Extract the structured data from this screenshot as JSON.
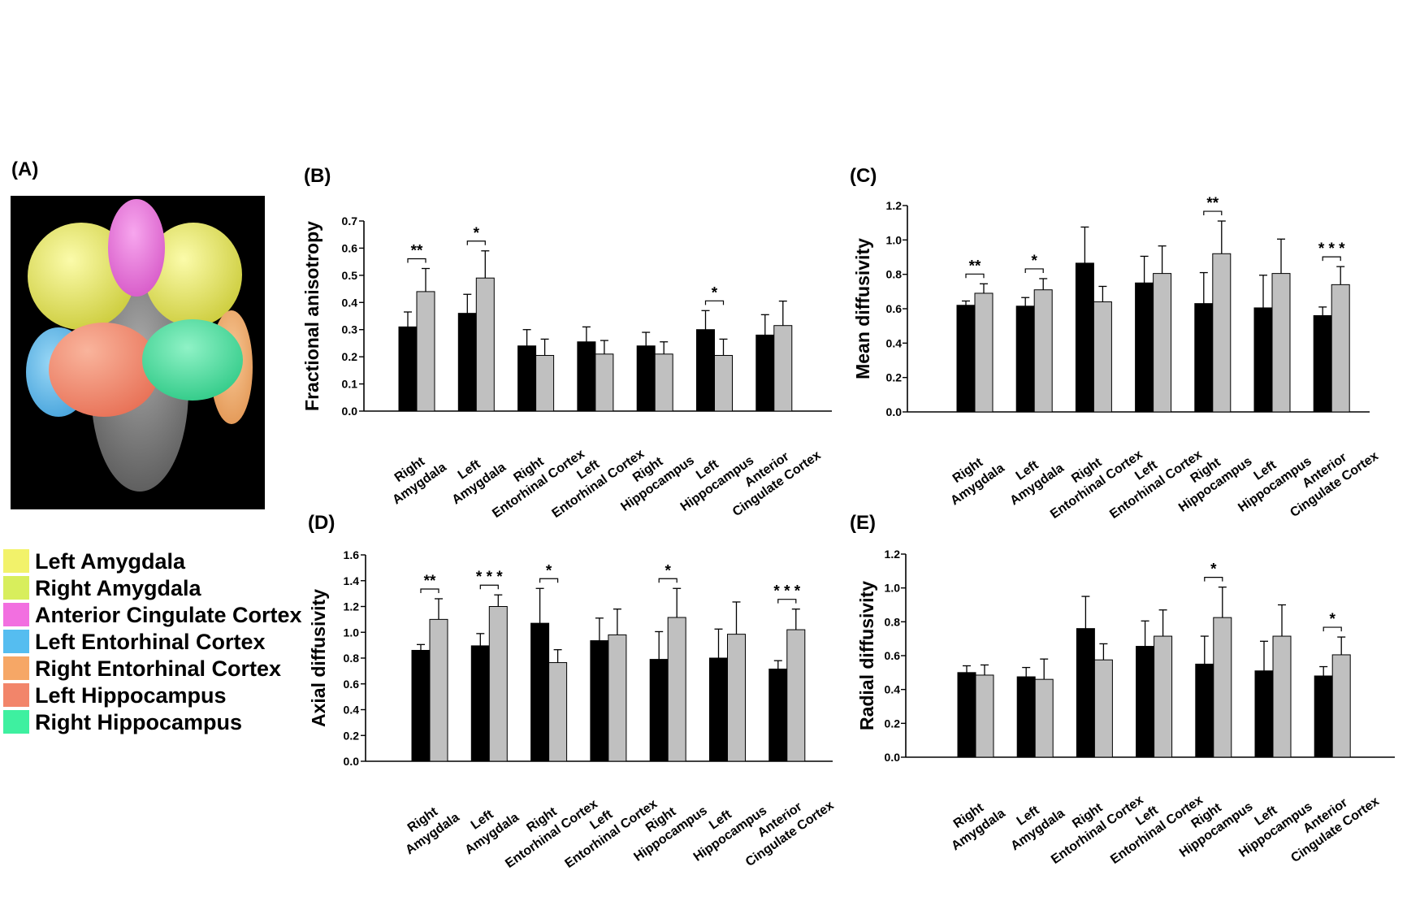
{
  "figure": {
    "panels": [
      {
        "label": "(A)"
      },
      {
        "label": "(B)"
      },
      {
        "label": "(C)"
      },
      {
        "label": "(D)"
      },
      {
        "label": "(E)"
      }
    ],
    "legend": [
      {
        "label": "Left Amygdala",
        "color": "#f2f26a"
      },
      {
        "label": "Right Amygdala",
        "color": "#d8ee5c"
      },
      {
        "label": "Anterior Cingulate Cortex",
        "color": "#f26fe0"
      },
      {
        "label": "Left Entorhinal Cortex",
        "color": "#55bdf0"
      },
      {
        "label": "Right Entorhinal Cortex",
        "color": "#f6a766"
      },
      {
        "label": "Left Hippocampus",
        "color": "#f2856a"
      },
      {
        "label": "Right Hippocampus",
        "color": "#3ef0a0"
      }
    ],
    "colors": {
      "group1": "#000000",
      "group2": "#c0c0c0",
      "axis": "#000000",
      "background": "#ffffff"
    }
  },
  "chart_data": [
    {
      "panel": "(B)",
      "type": "bar",
      "ylabel": "Fractional anisotropy",
      "ylim": [
        0,
        0.7
      ],
      "yticks": [
        "0.0",
        "0.1",
        "0.2",
        "0.3",
        "0.4",
        "0.5",
        "0.6",
        "0.7"
      ],
      "categories": [
        [
          "Right",
          "Amygdala"
        ],
        [
          "Left",
          "Amygdala"
        ],
        [
          "Right",
          "Entorhinal Cortex"
        ],
        [
          "Left",
          "Entorhinal Cortex"
        ],
        [
          "Right",
          "Hippocampus"
        ],
        [
          "Left",
          "Hippocampus"
        ],
        [
          "Anterior",
          "Cingulate Cortex"
        ]
      ],
      "series": [
        {
          "name": "group 1 (black)",
          "values": [
            0.31,
            0.36,
            0.24,
            0.255,
            0.24,
            0.3,
            0.28
          ],
          "errors": [
            0.055,
            0.07,
            0.06,
            0.055,
            0.05,
            0.07,
            0.075
          ]
        },
        {
          "name": "group 2 (gray)",
          "values": [
            0.44,
            0.49,
            0.205,
            0.21,
            0.21,
            0.205,
            0.315
          ],
          "errors": [
            0.085,
            0.1,
            0.06,
            0.05,
            0.045,
            0.06,
            0.09
          ]
        }
      ],
      "significance": [
        {
          "category": 0,
          "label": "**"
        },
        {
          "category": 1,
          "label": "*"
        },
        {
          "category": 5,
          "label": "*"
        }
      ]
    },
    {
      "panel": "(C)",
      "type": "bar",
      "ylabel": "Mean diffusivity",
      "ylim": [
        0,
        1.2
      ],
      "yticks": [
        "0.0",
        "0.2",
        "0.4",
        "0.6",
        "0.8",
        "1.0",
        "1.2"
      ],
      "categories": [
        [
          "Right",
          "Amygdala"
        ],
        [
          "Left",
          "Amygdala"
        ],
        [
          "Right",
          "Entorhinal Cortex"
        ],
        [
          "Left",
          "Entorhinal Cortex"
        ],
        [
          "Right",
          "Hippocampus"
        ],
        [
          "Left",
          "Hippocampus"
        ],
        [
          "Anterior",
          "Cingulate Cortex"
        ]
      ],
      "series": [
        {
          "name": "group 1 (black)",
          "values": [
            0.62,
            0.615,
            0.865,
            0.75,
            0.63,
            0.605,
            0.56
          ],
          "errors": [
            0.025,
            0.05,
            0.21,
            0.155,
            0.18,
            0.19,
            0.05
          ]
        },
        {
          "name": "group 2 (gray)",
          "values": [
            0.69,
            0.71,
            0.64,
            0.805,
            0.92,
            0.805,
            0.74
          ],
          "errors": [
            0.055,
            0.065,
            0.09,
            0.16,
            0.19,
            0.2,
            0.105
          ]
        }
      ],
      "significance": [
        {
          "category": 0,
          "label": "**"
        },
        {
          "category": 1,
          "label": "*"
        },
        {
          "category": 4,
          "label": "**"
        },
        {
          "category": 6,
          "label": "* * *"
        }
      ]
    },
    {
      "panel": "(D)",
      "type": "bar",
      "ylabel": "Axial diffusivity",
      "ylim": [
        0,
        1.6
      ],
      "yticks": [
        "0.0",
        "0.2",
        "0.4",
        "0.6",
        "0.8",
        "1.0",
        "1.2",
        "1.4",
        "1.6"
      ],
      "categories": [
        [
          "Right",
          "Amygdala"
        ],
        [
          "Left",
          "Amygdala"
        ],
        [
          "Right",
          "Entorhinal Cortex"
        ],
        [
          "Left",
          "Entorhinal Cortex"
        ],
        [
          "Right",
          "Hippocampus"
        ],
        [
          "Left",
          "Hippocampus"
        ],
        [
          "Anterior",
          "Cingulate Cortex"
        ]
      ],
      "series": [
        {
          "name": "group 1 (black)",
          "values": [
            0.86,
            0.895,
            1.07,
            0.935,
            0.79,
            0.8,
            0.715
          ],
          "errors": [
            0.045,
            0.095,
            0.27,
            0.175,
            0.215,
            0.225,
            0.065
          ]
        },
        {
          "name": "group 2 (gray)",
          "values": [
            1.1,
            1.2,
            0.765,
            0.98,
            1.115,
            0.985,
            1.02
          ],
          "errors": [
            0.16,
            0.09,
            0.1,
            0.2,
            0.225,
            0.25,
            0.16
          ]
        }
      ],
      "significance": [
        {
          "category": 0,
          "label": "**"
        },
        {
          "category": 1,
          "label": "* * *"
        },
        {
          "category": 2,
          "label": "*"
        },
        {
          "category": 4,
          "label": "*"
        },
        {
          "category": 6,
          "label": "* * *"
        }
      ]
    },
    {
      "panel": "(E)",
      "type": "bar",
      "ylabel": "Radial diffusivity",
      "ylim": [
        0,
        1.2
      ],
      "yticks": [
        "0.0",
        "0.2",
        "0.4",
        "0.6",
        "0.8",
        "1.0",
        "1.2"
      ],
      "categories": [
        [
          "Right",
          "Amygdala"
        ],
        [
          "Left",
          "Amygdala"
        ],
        [
          "Right",
          "Entorhinal Cortex"
        ],
        [
          "Left",
          "Entorhinal Cortex"
        ],
        [
          "Right",
          "Hippocampus"
        ],
        [
          "Left",
          "Hippocampus"
        ],
        [
          "Anterior",
          "Cingulate Cortex"
        ]
      ],
      "series": [
        {
          "name": "group 1 (black)",
          "values": [
            0.5,
            0.475,
            0.76,
            0.655,
            0.55,
            0.51,
            0.48
          ],
          "errors": [
            0.04,
            0.055,
            0.19,
            0.15,
            0.165,
            0.175,
            0.055
          ]
        },
        {
          "name": "group 2 (gray)",
          "values": [
            0.485,
            0.46,
            0.575,
            0.715,
            0.825,
            0.715,
            0.605
          ],
          "errors": [
            0.06,
            0.12,
            0.095,
            0.155,
            0.18,
            0.185,
            0.105
          ]
        }
      ],
      "significance": [
        {
          "category": 4,
          "label": "*"
        },
        {
          "category": 6,
          "label": "*"
        }
      ]
    }
  ]
}
